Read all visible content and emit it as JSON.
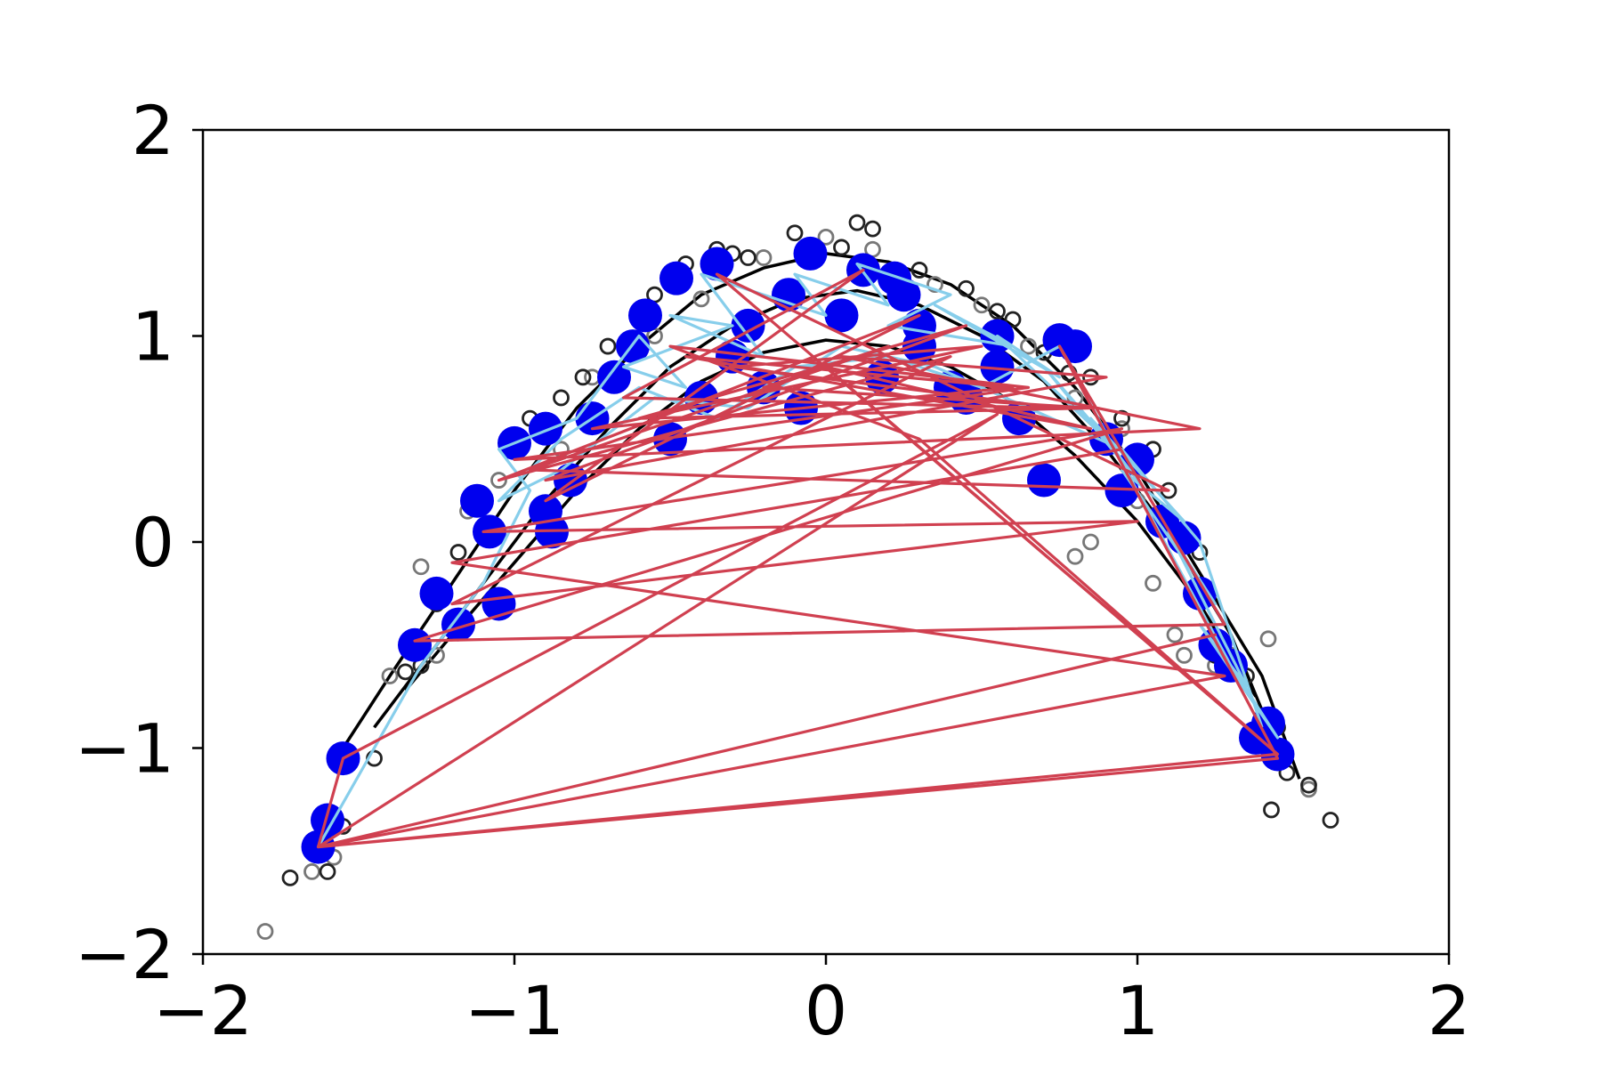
{
  "chart_data": {
    "type": "scatter",
    "title": "",
    "xlabel": "",
    "ylabel": "",
    "xlim": [
      -2,
      2
    ],
    "ylim": [
      -2,
      2
    ],
    "grid": false,
    "legend": "none",
    "x_ticks": [
      -2,
      -1,
      0,
      1,
      2
    ],
    "y_ticks": [
      -2,
      -1,
      0,
      1,
      2
    ],
    "x_tick_labels": [
      "−2",
      "−1",
      "0",
      "1",
      "2"
    ],
    "y_tick_labels": [
      "−2",
      "−1",
      "0",
      "1",
      "2"
    ],
    "colors": {
      "curve": "#000000",
      "samples_open": "#222222",
      "samples_faded": "#777777",
      "selected_points": "#0000ee",
      "path_light": "#87ceeb",
      "path_red": "#d04050"
    },
    "curves": [
      {
        "x": [
          -1.55,
          -1.4,
          -1.2,
          -1.0,
          -0.8,
          -0.6,
          -0.4,
          -0.2,
          0.0,
          0.2,
          0.4,
          0.6,
          0.8,
          1.0,
          1.2,
          1.4,
          1.52
        ],
        "y": [
          -1.0,
          -0.65,
          -0.2,
          0.25,
          0.65,
          0.95,
          1.2,
          1.33,
          1.4,
          1.36,
          1.25,
          1.05,
          0.75,
          0.35,
          -0.15,
          -0.65,
          -1.15
        ]
      },
      {
        "x": [
          -1.45,
          -1.3,
          -1.1,
          -0.9,
          -0.7,
          -0.5,
          -0.3,
          -0.1,
          0.1,
          0.3,
          0.5,
          0.7,
          0.9,
          1.1,
          1.3,
          1.45
        ],
        "y": [
          -0.9,
          -0.6,
          -0.2,
          0.2,
          0.55,
          0.85,
          1.05,
          1.18,
          1.22,
          1.15,
          1.0,
          0.78,
          0.45,
          0.05,
          -0.45,
          -1.0
        ]
      },
      {
        "x": [
          -1.35,
          -1.2,
          -1.0,
          -0.8,
          -0.6,
          -0.4,
          -0.2,
          0.0,
          0.2,
          0.4,
          0.6,
          0.8,
          1.0,
          1.2,
          1.38
        ],
        "y": [
          -0.72,
          -0.45,
          -0.1,
          0.25,
          0.55,
          0.78,
          0.92,
          0.98,
          0.95,
          0.85,
          0.68,
          0.42,
          0.1,
          -0.3,
          -0.75
        ]
      }
    ],
    "samples_open": {
      "x": [
        -1.72,
        -1.6,
        -1.55,
        -1.45,
        -1.35,
        -1.3,
        -1.25,
        -1.18,
        -1.1,
        -1.0,
        -0.95,
        -0.85,
        -0.78,
        -0.7,
        -0.6,
        -0.55,
        -0.45,
        -0.35,
        -0.3,
        -0.25,
        -0.1,
        0.05,
        0.1,
        0.15,
        0.3,
        0.45,
        0.55,
        0.6,
        0.7,
        0.78,
        0.85,
        0.95,
        1.05,
        1.1,
        1.2,
        1.25,
        1.35,
        1.45,
        1.48,
        1.55,
        1.62,
        1.43
      ],
      "y": [
        -1.63,
        -1.6,
        -1.38,
        -1.05,
        -0.63,
        -0.6,
        -0.3,
        -0.05,
        0.2,
        0.45,
        0.6,
        0.7,
        0.8,
        0.95,
        1.1,
        1.2,
        1.35,
        1.42,
        1.4,
        1.38,
        1.5,
        1.43,
        1.55,
        1.52,
        1.32,
        1.23,
        1.12,
        1.08,
        0.92,
        0.82,
        0.8,
        0.6,
        0.45,
        0.25,
        -0.05,
        -0.55,
        -0.65,
        -0.9,
        -1.12,
        -1.18,
        -1.35,
        -1.3
      ]
    },
    "samples_faded": {
      "x": [
        -1.8,
        -1.65,
        -1.58,
        -1.4,
        -1.3,
        -1.25,
        -1.15,
        -1.05,
        -0.85,
        -0.75,
        -0.55,
        -0.4,
        -0.2,
        0.0,
        0.15,
        0.35,
        0.5,
        0.65,
        0.8,
        0.95,
        1.0,
        1.05,
        1.12,
        1.15,
        1.25,
        1.3,
        1.42,
        1.55,
        0.8,
        0.85
      ],
      "y": [
        -1.89,
        -1.6,
        -1.53,
        -0.65,
        -0.12,
        -0.55,
        0.15,
        0.3,
        0.45,
        0.8,
        1.0,
        1.18,
        1.38,
        1.48,
        1.42,
        1.25,
        1.15,
        0.95,
        0.7,
        0.55,
        0.2,
        -0.2,
        -0.45,
        -0.55,
        -0.6,
        -0.55,
        -0.47,
        -1.2,
        -0.07,
        0.0
      ]
    },
    "selected_points": {
      "x": [
        -1.63,
        -1.6,
        -1.55,
        -1.32,
        -1.25,
        -1.18,
        -1.12,
        -1.08,
        -1.0,
        -0.9,
        -0.88,
        -0.82,
        -0.75,
        -0.68,
        -0.62,
        -0.58,
        -0.5,
        -0.48,
        -0.4,
        -0.35,
        -0.3,
        -0.2,
        -0.12,
        -0.08,
        -0.05,
        0.05,
        0.12,
        0.18,
        0.22,
        0.25,
        0.3,
        0.4,
        0.45,
        0.55,
        0.62,
        0.7,
        0.75,
        0.8,
        0.9,
        0.95,
        1.0,
        1.08,
        1.15,
        1.2,
        1.25,
        1.3,
        1.42,
        1.45,
        1.38,
        -0.9,
        -1.05,
        0.55,
        -0.25,
        0.3
      ],
      "y": [
        -1.48,
        -1.35,
        -1.05,
        -0.5,
        -0.25,
        -0.4,
        0.2,
        0.05,
        0.48,
        0.55,
        0.05,
        0.3,
        0.6,
        0.8,
        0.95,
        1.1,
        0.5,
        1.28,
        0.7,
        1.35,
        0.9,
        0.75,
        1.2,
        0.65,
        1.4,
        1.1,
        1.32,
        0.8,
        1.28,
        1.2,
        1.05,
        0.75,
        0.7,
        0.85,
        0.6,
        0.3,
        0.98,
        0.95,
        0.5,
        0.25,
        0.4,
        0.1,
        0.02,
        -0.25,
        -0.5,
        -0.6,
        -0.88,
        -1.03,
        -0.95,
        0.15,
        -0.3,
        1.0,
        1.05,
        0.95
      ]
    },
    "path_light": {
      "x": [
        -1.63,
        -1.3,
        -1.1,
        -0.95,
        -1.05,
        -0.8,
        -0.6,
        -0.45,
        -0.65,
        -0.3,
        -0.5,
        -0.2,
        -0.4,
        0.0,
        -0.1,
        0.2,
        0.1,
        0.4,
        0.2,
        0.6,
        0.35,
        0.75,
        0.55,
        0.9,
        0.7,
        1.0,
        0.85,
        1.15,
        0.95,
        1.25,
        1.1,
        1.35,
        1.2,
        1.45,
        1.3,
        0.75,
        0.5,
        0.2,
        -0.1,
        -0.35,
        -0.6,
        -0.85,
        -1.05,
        -0.85,
        -0.55,
        -0.25,
        0.05,
        0.35,
        0.65,
        0.95,
        1.2,
        1.4
      ],
      "y": [
        -1.48,
        -0.6,
        -0.2,
        0.25,
        0.45,
        0.6,
        1.0,
        0.75,
        0.85,
        1.05,
        1.1,
        0.9,
        1.3,
        1.1,
        1.3,
        1.15,
        1.35,
        1.2,
        1.05,
        0.95,
        1.15,
        0.8,
        1.0,
        0.5,
        0.85,
        0.3,
        0.6,
        0.1,
        0.35,
        -0.3,
        0.05,
        -0.7,
        -0.4,
        -0.95,
        -0.6,
        0.95,
        0.75,
        0.9,
        0.85,
        0.6,
        0.75,
        0.5,
        0.2,
        0.35,
        0.7,
        0.65,
        0.95,
        0.85,
        0.65,
        0.45,
        0.0,
        -0.9
      ]
    },
    "path_red": {
      "x": [
        -1.63,
        -1.55,
        0.55,
        -1.63,
        1.25,
        -1.63,
        1.45,
        0.75,
        1.28,
        -1.32,
        0.95,
        -1.1,
        1.0,
        -1.2,
        0.4,
        -1.05,
        0.3,
        -0.9,
        0.12,
        -0.65,
        0.75,
        -0.3,
        0.5,
        -0.75,
        0.6,
        -0.45,
        0.85,
        0.0,
        1.45,
        -0.35,
        1.1,
        -0.95,
        0.2,
        -0.2,
        0.85,
        -0.6,
        0.45,
        -0.9,
        0.9,
        0.05,
        1.2,
        -1.0,
        0.65,
        -0.5,
        0.3,
        1.45,
        -1.63,
        1.28,
        -1.2,
        0.95
      ],
      "y": [
        -1.48,
        -1.05,
        0.62,
        -1.48,
        -0.45,
        -1.48,
        -1.05,
        0.95,
        -0.4,
        -0.48,
        0.55,
        0.05,
        0.1,
        -0.3,
        0.9,
        0.3,
        1.1,
        0.2,
        1.32,
        0.7,
        0.65,
        0.85,
        0.95,
        0.55,
        0.75,
        0.9,
        0.55,
        0.85,
        -1.03,
        1.3,
        0.25,
        0.35,
        0.95,
        0.75,
        0.65,
        0.6,
        1.05,
        0.3,
        0.8,
        0.9,
        0.55,
        0.4,
        0.75,
        0.95,
        0.5,
        -1.03,
        -1.48,
        -0.65,
        -0.1,
        0.45
      ]
    }
  }
}
